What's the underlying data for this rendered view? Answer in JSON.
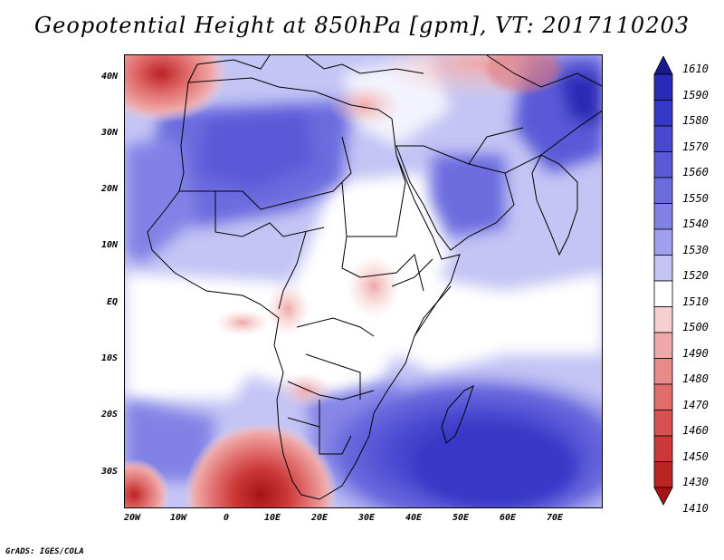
{
  "title": "Geopotential Height at 850hPa [gpm], VT: 2017110203",
  "footer": "GrADS: IGES/COLA",
  "map": {
    "lat_labels": [
      "40N",
      "30N",
      "20N",
      "10N",
      "EQ",
      "10S",
      "20S",
      "30S"
    ],
    "lon_labels": [
      "20W",
      "10W",
      "0",
      "10E",
      "20E",
      "30E",
      "40E",
      "50E",
      "60E",
      "70E"
    ]
  },
  "colorbar": {
    "levels": [
      "1610",
      "1590",
      "1580",
      "1570",
      "1560",
      "1550",
      "1540",
      "1530",
      "1520",
      "1510",
      "1500",
      "1490",
      "1480",
      "1470",
      "1460",
      "1450",
      "1430",
      "1410"
    ],
    "colors": [
      "#1a1a8f",
      "#2a2ab8",
      "#3838c8",
      "#4848d0",
      "#5a5ad8",
      "#6c6cdf",
      "#8282e6",
      "#a0a0ee",
      "#c4c4f5",
      "#ffffff",
      "#f6d0d0",
      "#f0a8a8",
      "#e88a8a",
      "#e06c6c",
      "#d85050",
      "#cc3838",
      "#bc2424",
      "#a81414"
    ]
  }
}
